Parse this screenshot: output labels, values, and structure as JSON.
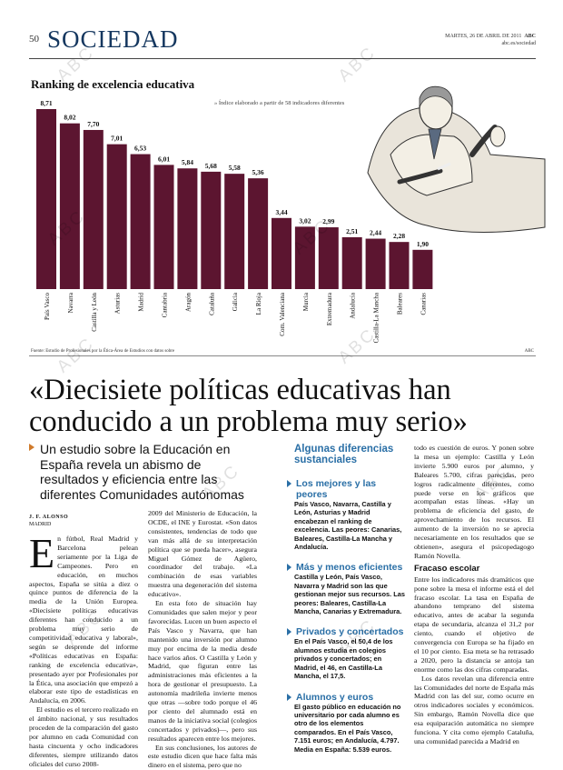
{
  "header": {
    "page_number": "50",
    "section": "SOCIEDAD",
    "date": "MARTES, 26 DE ABRIL DE 2011",
    "publication": "ABC",
    "website": "abc.es/sociedad"
  },
  "chart_title": "Ranking de excelencia educativa",
  "chart_note": "» Índice elaborado a partir de 58 indicadores diferentes",
  "chart_source": "Fuente: Estudio de Profesionales por la Ética-Área de Estudios con datos sobre",
  "chart_credit": "ABC",
  "chart_data": {
    "type": "bar",
    "categories": [
      "País Vasco",
      "Navarra",
      "Castilla y León",
      "Asturias",
      "Madrid",
      "Cantabria",
      "Aragón",
      "Cataluña",
      "Galicia",
      "La Rioja",
      "Com. Valenciana",
      "Murcia",
      "Extremadura",
      "Andalucía",
      "Castilla-La Mancha",
      "Baleares",
      "Canarias"
    ],
    "values": [
      8.71,
      8.02,
      7.7,
      7.01,
      6.53,
      6.01,
      5.84,
      5.68,
      5.58,
      5.36,
      3.44,
      3.02,
      2.99,
      2.51,
      2.44,
      2.28,
      1.9
    ],
    "value_labels": [
      "8,71",
      "8,02",
      "7,70",
      "7,01",
      "6,53",
      "6,01",
      "5,84",
      "5,68",
      "5,58",
      "5,36",
      "3,44",
      "3,02",
      "2,99",
      "2,51",
      "2,44",
      "2,28",
      "1,90"
    ],
    "ylim": [
      0,
      10
    ],
    "bar_color": "#5c1530",
    "grid": false
  },
  "headline": "«Diecisiete políticas educativas han conducido a un problema muy serio»",
  "deck": "Un estudio sobre la Educación en España revela un abismo de resultados y eficiencia entre las diferentes Comunidades autónomas",
  "byline": "J. F. ALONSO",
  "dateline": "MADRID",
  "body": {
    "dropcap": "E",
    "col1_p1": "n fútbol, Real Madrid y Barcelona pelean seriamente por la Liga de Campeones. Pero en educación, en muchos aspectos, España se sitúa a diez o quince puntos de diferencia de la media de la Unión Europea. «Diecisiete políticas educativas diferentes han conducido a un problema muy serio de competitividad educativa y laboral», según se desprende del informe «Políticas educativas en España: ranking de excelencia educativa», presentado ayer por Profesionales por la Ética, una asociación que empezó a elaborar este tipo de estadísticas en Andalucía, en 2006.",
    "col1_p2": "El estudio es el tercero realizado en el ámbito nacional, y sus resultados proceden de la comparación del gasto por alumno en cada Comunidad con hasta cincuenta y ocho indicadores diferentes, siempre utilizando datos oficiales del curso 2008-",
    "col2_p1": "2009 del Ministerio de Educación, la OCDE, el INE y Eurostat. «Son datos consistentes, tendencias de todo que van más allá de su interpretación política que se pueda hacer», asegura Miguel Gómez de Agüero, coordinador del trabajo. «La combinación de esas variables muestra una degeneración del sistema educativo».",
    "col2_p2": "En esta foto de situación hay Comunidades que salen mejor y peor favorecidas. Lucen un buen aspecto el País Vasco y Navarra, que han mantenido una inversión por alumno muy por encima de la media desde hace varios años. O Castilla y León y Madrid, que figuran entre las administraciones más eficientes a la hora de gestionar el presupuesto. La autonomía madrileña invierte menos que otras —sobre todo porque el 46 por ciento del alumnado está en manos de la iniciativa social (colegios concertados y privados)—, pero sus resultados aparecen entre los mejores.",
    "col2_p3": "En sus conclusiones, los autores de este estudio dicen que hace falta más dinero en el sistema, pero que no",
    "col4_p1": "todo es cuestión de euros. Y ponen sobre la mesa un ejemplo: Castilla y León invierte 5.900 euros por alumno, y Baleares 5.700, cifras parecidas, pero logros radicalmente diferentes, como puede verse en los gráficos que acompañan estas líneas. «Hay un problema de eficiencia del gasto, de aprovechamiento de los recursos. El aumento de la inversión no se aprecia necesariamente en los resultados que se obtienen», asegura el psicopedagogo Ramón Novella.",
    "fracaso_title": "Fracaso escolar",
    "col4_p2": "Entre los indicadores más dramáticos que pone sobre la mesa el informe está el del fracaso escolar. La tasa en España de abandono temprano del sistema educativo, antes de acabar la segunda etapa de secundaria, alcanza el 31,2 por ciento, cuando el objetivo de convergencia con Europa se ha fijado en el 10 por ciento. Esa meta se ha retrasado a 2020, pero la distancia se antoja tan enorme como las dos cifras comparadas.",
    "col4_p3": "Los datos revelan una diferencia entre las Comunidades del norte de España más Madrid con las del sur, como ocurre en otros indicadores sociales y económicos. Sin embargo, Ramón Novella dice que esa equiparación automática no siempre funciona. Y cita como ejemplo Cataluña, una comunidad parecida a Madrid en"
  },
  "sidebar": {
    "title": "Algunas diferencias sustanciales",
    "items": [
      {
        "head": "Los mejores y las peores",
        "body": "País Vasco, Navarra, Castilla y León, Asturias y Madrid encabezan el ranking de excelencia. Las peores: Canarias, Baleares, Castilla-La Mancha y Andalucía."
      },
      {
        "head": "Más y menos eficientes",
        "body": "Castilla y León, País Vasco, Navarra y Madrid son las que gestionan mejor sus recursos. Las peores: Baleares, Castilla-La Mancha, Canarias y Extremadura."
      },
      {
        "head": "Privados y concertados",
        "body": "En el País Vasco, el 50,4 de los alumnos estudia en colegios privados y concertados; en Madrid, el 46, en Castilla-La Mancha, el 17,5."
      },
      {
        "head": "Alumnos y euros",
        "body": "El gasto público en educación no universitario por cada alumno es otro de los elementos comparados. En el País Vasco, 7.151 euros; en Andalucía, 4.797. Media en España: 5.539 euros."
      }
    ]
  },
  "watermark_text": "ABC"
}
